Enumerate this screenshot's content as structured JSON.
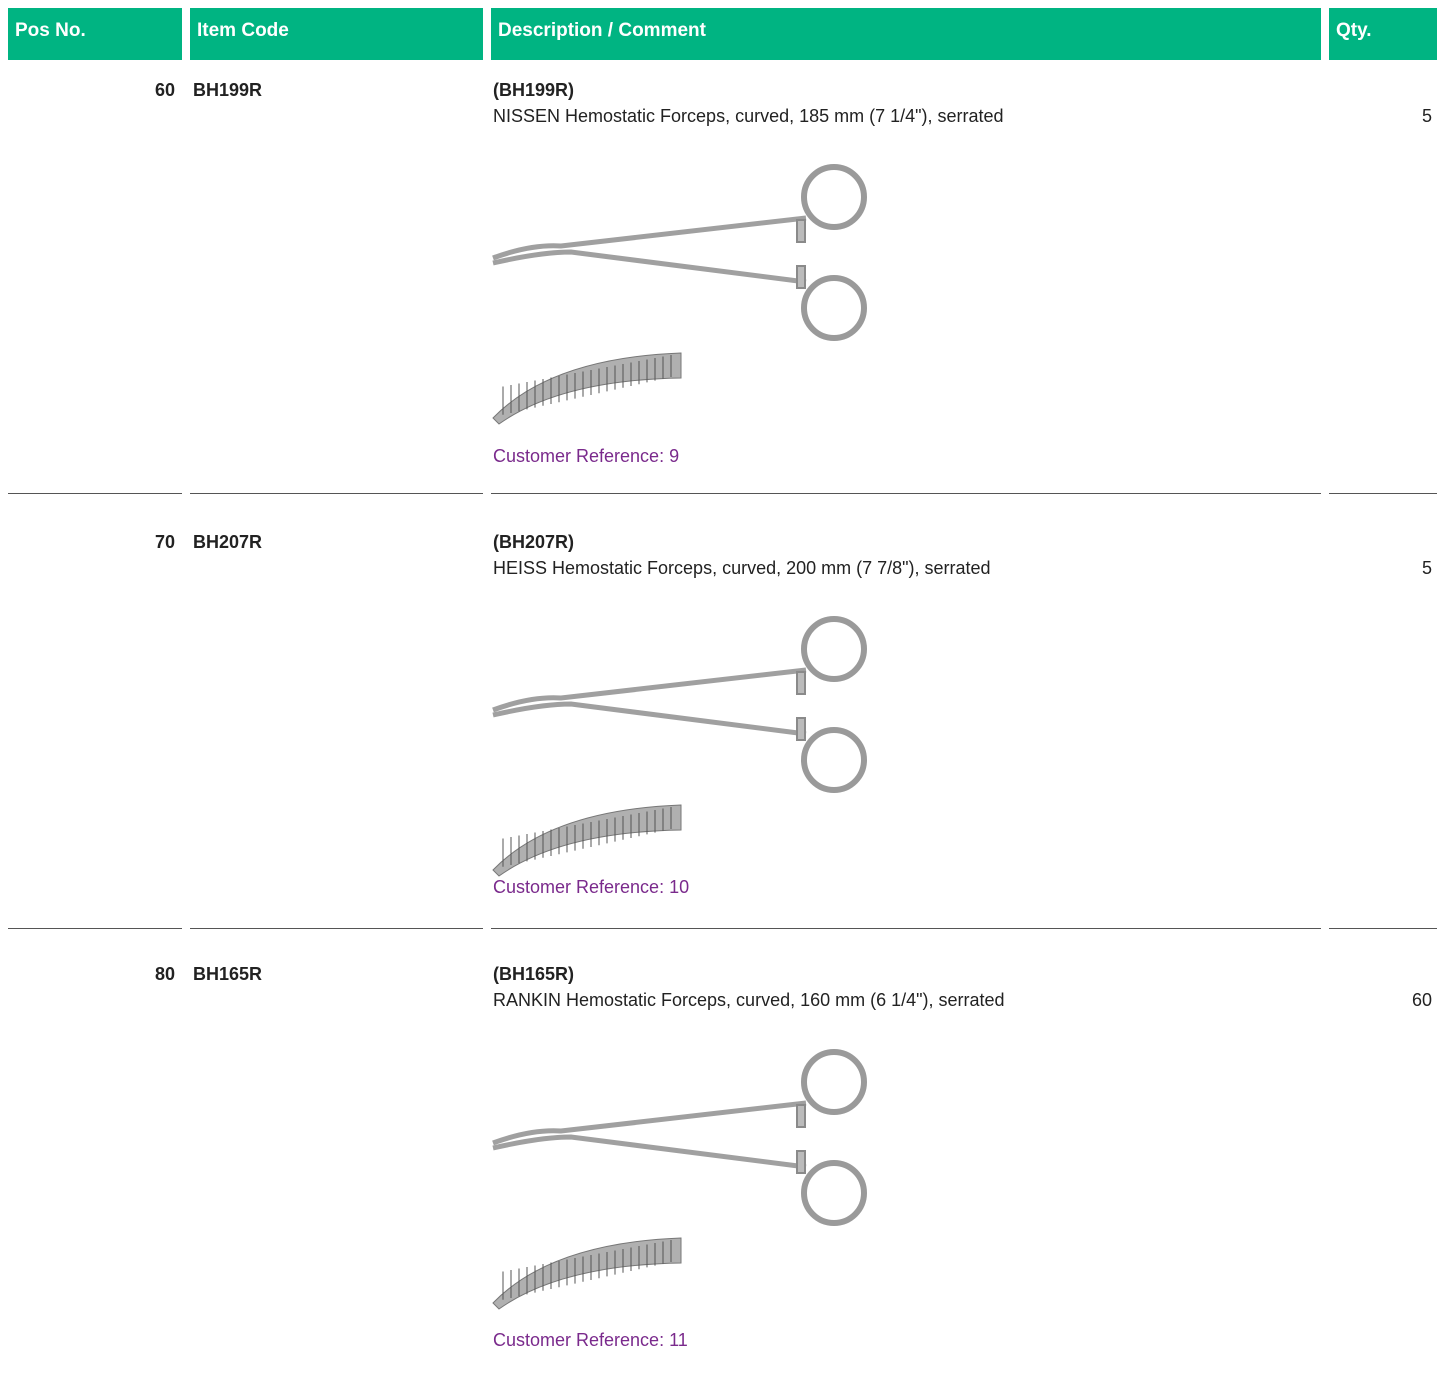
{
  "header": [
    "Pos No.",
    "Item Code",
    "Description / Comment",
    "Qty."
  ],
  "rows": [
    {
      "pos": 60,
      "item_code": "BH199R",
      "code_line": "(BH199R)",
      "description": "NISSEN Hemostatic Forceps, curved, 185 mm (7 1/4\"), serrated",
      "qty": 5,
      "reference": "Customer Reference: 9"
    },
    {
      "pos": 70,
      "item_code": "BH207R",
      "code_line": "(BH207R)",
      "description": "HEISS Hemostatic Forceps, curved, 200 mm (7 7/8\"), serrated",
      "qty": 5,
      "reference": "Customer Reference: 10"
    },
    {
      "pos": 80,
      "item_code": "BH165R",
      "code_line": "(BH165R)",
      "description": "RANKIN Hemostatic Forceps, curved, 160 mm (6 1/4\"), serrated",
      "qty": 60,
      "reference": "Customer Reference: 11"
    }
  ]
}
